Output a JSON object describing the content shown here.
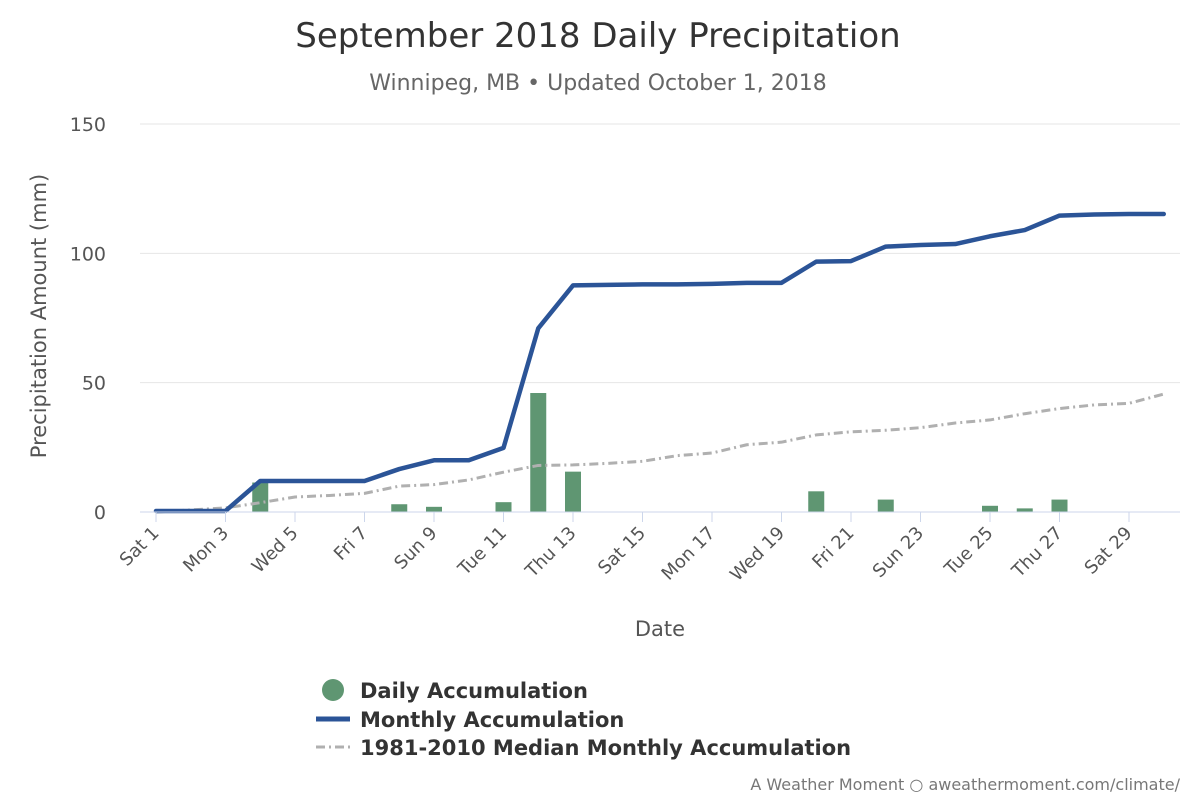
{
  "title": "September 2018 Daily Precipitation",
  "subtitle": "Winnipeg, MB • Updated October 1, 2018",
  "credit": "A Weather Moment ○ aweathermoment.com/climate/",
  "colors": {
    "daily": "#5f9672",
    "monthly": "#2b5497",
    "median": "#b0b0b0",
    "grid": "#e6e6e6",
    "axis": "#ccd6eb"
  },
  "chart_data": {
    "type": "bar",
    "title": "September 2018 Daily Precipitation",
    "subtitle": "Winnipeg, MB • Updated October 1, 2018",
    "xlabel": "Date",
    "ylabel": "Precipitation Amount (mm)",
    "ylim": [
      0,
      150
    ],
    "yticks": [
      0,
      50,
      100,
      150
    ],
    "grid": true,
    "legend_position": "bottom",
    "x": [
      1,
      2,
      3,
      4,
      5,
      6,
      7,
      8,
      9,
      10,
      11,
      12,
      13,
      14,
      15,
      16,
      17,
      18,
      19,
      20,
      21,
      22,
      23,
      24,
      25,
      26,
      27,
      28,
      29,
      30
    ],
    "xtick_labels": [
      {
        "day": 1,
        "label": "Sat 1"
      },
      {
        "day": 3,
        "label": "Mon 3"
      },
      {
        "day": 5,
        "label": "Wed 5"
      },
      {
        "day": 7,
        "label": "Fri 7"
      },
      {
        "day": 9,
        "label": "Sun 9"
      },
      {
        "day": 11,
        "label": "Tue 11"
      },
      {
        "day": 13,
        "label": "Thu 13"
      },
      {
        "day": 15,
        "label": "Sat 15"
      },
      {
        "day": 17,
        "label": "Mon 17"
      },
      {
        "day": 19,
        "label": "Wed 19"
      },
      {
        "day": 21,
        "label": "Fri 21"
      },
      {
        "day": 23,
        "label": "Sun 23"
      },
      {
        "day": 25,
        "label": "Tue 25"
      },
      {
        "day": 27,
        "label": "Thu 27"
      },
      {
        "day": 29,
        "label": "Sat 29"
      }
    ],
    "series": [
      {
        "name": "Daily Accumulation",
        "type": "bar",
        "values": [
          0,
          0,
          0,
          11.4,
          0,
          0,
          0,
          3,
          2,
          0,
          3.8,
          46,
          15.6,
          0,
          0,
          0,
          0,
          0,
          0,
          8,
          0,
          4.8,
          0,
          0,
          2.4,
          1.4,
          4.8,
          0,
          0,
          0
        ]
      },
      {
        "name": "Monthly Accumulation",
        "type": "line",
        "values": [
          0.4,
          0.4,
          0.4,
          12,
          12,
          12,
          12,
          16.6,
          20,
          20,
          24.8,
          71,
          87.6,
          87.8,
          88,
          88,
          88.2,
          88.6,
          88.6,
          96.8,
          97,
          102.6,
          103.2,
          103.6,
          106.6,
          109,
          114.6,
          115,
          115.2,
          115.2
        ]
      },
      {
        "name": "1981-2010 Median Monthly Accumulation",
        "type": "line",
        "style": "dash-dot",
        "values": [
          0,
          0.8,
          1.6,
          3.6,
          5.8,
          6.4,
          7.2,
          10,
          10.6,
          12.4,
          15.4,
          18,
          18.2,
          18.8,
          19.6,
          21.8,
          22.8,
          26,
          27,
          29.8,
          31,
          31.6,
          32.6,
          34.4,
          35.6,
          38,
          40,
          41.4,
          42,
          45.6
        ]
      }
    ]
  }
}
